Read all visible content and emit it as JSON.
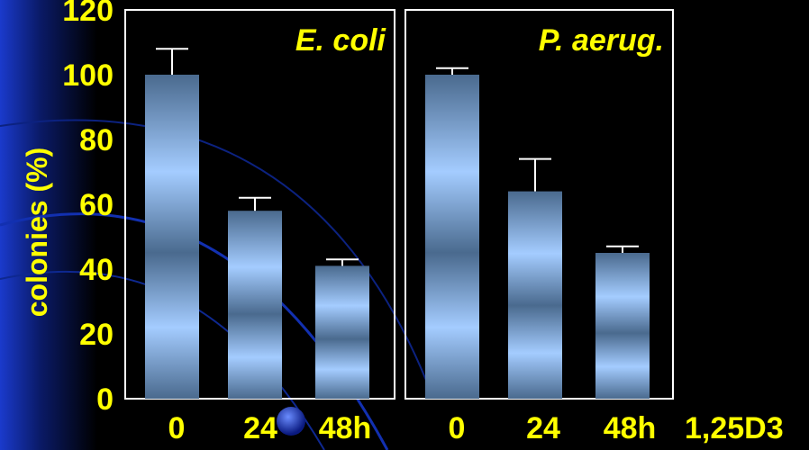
{
  "chart_data": {
    "type": "bar",
    "ylabel": "colonies (%)",
    "ylim": [
      0,
      120
    ],
    "yticks": [
      "0",
      "20",
      "40",
      "60",
      "80",
      "100",
      "120"
    ],
    "x_unit_label": "1,25D3",
    "panels": [
      {
        "title": "E. coli",
        "categories": [
          "0",
          "24",
          "48h"
        ],
        "values": [
          100,
          58,
          41
        ],
        "error": [
          8,
          4,
          2
        ]
      },
      {
        "title": "P. aerug.",
        "categories": [
          "0",
          "24",
          "48h"
        ],
        "values": [
          100,
          64,
          45
        ],
        "error": [
          2,
          10,
          2
        ]
      }
    ],
    "colors": {
      "background": "#000000",
      "accent_blue": "#1a3acc",
      "bar_light": "#a4ccff",
      "bar_dark": "#4a6a8e",
      "text": "#ffff00",
      "frame": "#ffffff"
    }
  }
}
